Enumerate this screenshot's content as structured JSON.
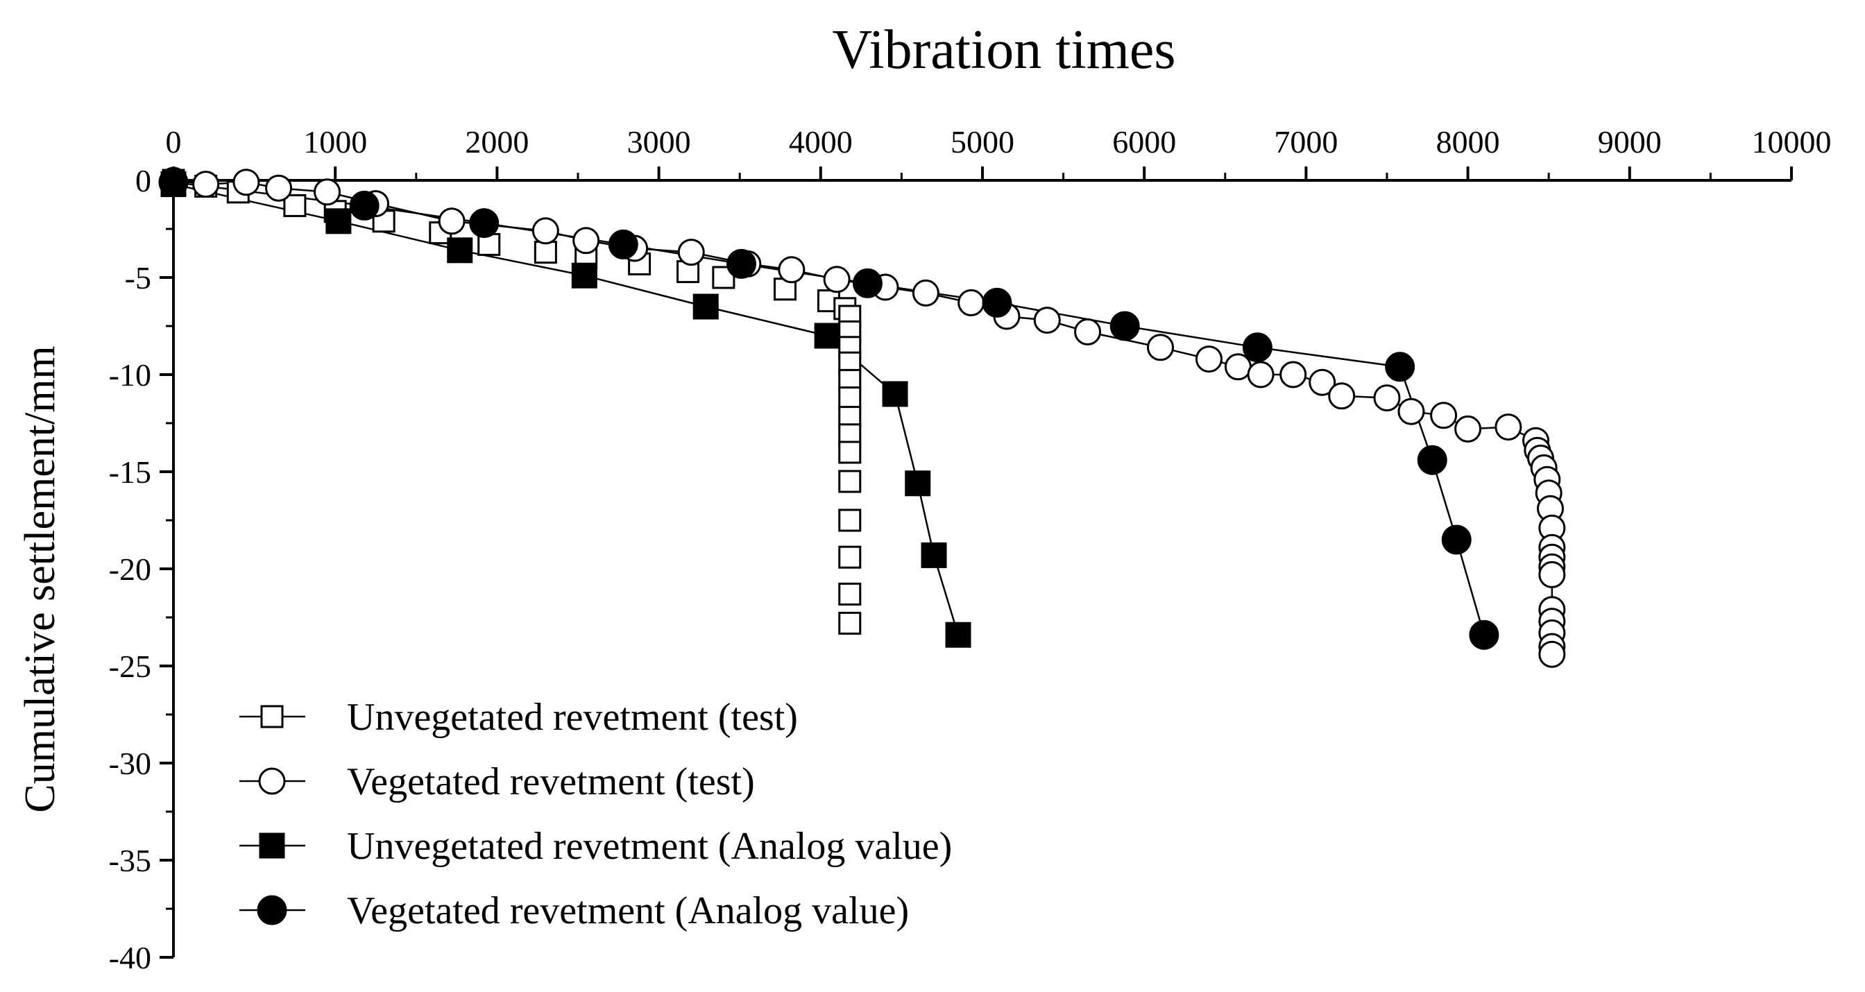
{
  "chart_data": {
    "type": "scatter",
    "title": "Vibration times",
    "xlabel": "Vibration times",
    "ylabel": "Cumulative settlement/mm",
    "xlim": [
      0,
      10000
    ],
    "ylim": [
      -40,
      0
    ],
    "x_ticks": [
      0,
      1000,
      2000,
      3000,
      4000,
      5000,
      6000,
      7000,
      8000,
      9000,
      10000
    ],
    "y_ticks": [
      0,
      -5,
      -10,
      -15,
      -20,
      -25,
      -30,
      -35,
      -40
    ],
    "x_axis_position": "top",
    "grid": false,
    "legend_position": "bottom-left",
    "series": [
      {
        "name": "Unvegetated revetment (test)",
        "marker": "square-open",
        "line": false,
        "points": [
          [
            0,
            0
          ],
          [
            200,
            -0.3
          ],
          [
            400,
            -0.6
          ],
          [
            750,
            -1.3
          ],
          [
            1000,
            -1.6
          ],
          [
            1300,
            -2.1
          ],
          [
            1650,
            -2.7
          ],
          [
            1950,
            -3.3
          ],
          [
            2300,
            -3.7
          ],
          [
            2550,
            -4.0
          ],
          [
            2880,
            -4.3
          ],
          [
            3180,
            -4.7
          ],
          [
            3400,
            -5.0
          ],
          [
            3780,
            -5.6
          ],
          [
            4050,
            -6.2
          ],
          [
            4150,
            -6.6
          ],
          [
            4180,
            -7.0
          ],
          [
            4180,
            -7.8
          ],
          [
            4180,
            -8.6
          ],
          [
            4180,
            -9.4
          ],
          [
            4180,
            -10.3
          ],
          [
            4180,
            -11.2
          ],
          [
            4180,
            -12.2
          ],
          [
            4180,
            -13.1
          ],
          [
            4180,
            -14.0
          ],
          [
            4180,
            -15.5
          ],
          [
            4180,
            -17.5
          ],
          [
            4180,
            -19.4
          ],
          [
            4180,
            -21.3
          ],
          [
            4180,
            -22.8
          ]
        ]
      },
      {
        "name": "Vegetated revetment (test)",
        "marker": "circle-open",
        "line": true,
        "points": [
          [
            0,
            0
          ],
          [
            200,
            -0.2
          ],
          [
            450,
            -0.1
          ],
          [
            650,
            -0.4
          ],
          [
            950,
            -0.6
          ],
          [
            1250,
            -1.2
          ],
          [
            1720,
            -2.1
          ],
          [
            2300,
            -2.6
          ],
          [
            2550,
            -3.1
          ],
          [
            2850,
            -3.5
          ],
          [
            3200,
            -3.7
          ],
          [
            3550,
            -4.3
          ],
          [
            3820,
            -4.6
          ],
          [
            4100,
            -5.1
          ],
          [
            4400,
            -5.5
          ],
          [
            4650,
            -5.8
          ],
          [
            4930,
            -6.3
          ],
          [
            5150,
            -7.0
          ],
          [
            5400,
            -7.2
          ],
          [
            5650,
            -7.8
          ],
          [
            6100,
            -8.6
          ],
          [
            6400,
            -9.2
          ],
          [
            6580,
            -9.6
          ],
          [
            6720,
            -10.0
          ],
          [
            6920,
            -10.0
          ],
          [
            7100,
            -10.4
          ],
          [
            7220,
            -11.1
          ],
          [
            7500,
            -11.2
          ],
          [
            7650,
            -11.9
          ],
          [
            7850,
            -12.1
          ],
          [
            8000,
            -12.8
          ],
          [
            8250,
            -12.7
          ],
          [
            8420,
            -13.4
          ],
          [
            8430,
            -13.9
          ],
          [
            8450,
            -14.3
          ],
          [
            8470,
            -14.8
          ],
          [
            8490,
            -15.4
          ],
          [
            8500,
            -16.1
          ],
          [
            8510,
            -16.9
          ],
          [
            8520,
            -17.9
          ],
          [
            8520,
            -18.9
          ],
          [
            8520,
            -19.4
          ],
          [
            8520,
            -19.9
          ],
          [
            8520,
            -20.3
          ],
          [
            8520,
            -22.1
          ],
          [
            8520,
            -22.7
          ],
          [
            8520,
            -23.3
          ],
          [
            8520,
            -24.0
          ],
          [
            8520,
            -24.4
          ]
        ]
      },
      {
        "name": "Unvegetated revetment (Analog value)",
        "marker": "square-filled",
        "line": true,
        "points": [
          [
            0,
            -0.2
          ],
          [
            1020,
            -2.1
          ],
          [
            1770,
            -3.6
          ],
          [
            2540,
            -4.9
          ],
          [
            3290,
            -6.5
          ],
          [
            4040,
            -8.0
          ],
          [
            4460,
            -11.0
          ],
          [
            4600,
            -15.6
          ],
          [
            4700,
            -19.3
          ],
          [
            4850,
            -23.4
          ]
        ]
      },
      {
        "name": "Vegetated revetment (Analog value)",
        "marker": "circle-filled",
        "line": true,
        "points": [
          [
            0,
            -0.1
          ],
          [
            1180,
            -1.3
          ],
          [
            1920,
            -2.2
          ],
          [
            2780,
            -3.3
          ],
          [
            3510,
            -4.3
          ],
          [
            4290,
            -5.3
          ],
          [
            5090,
            -6.3
          ],
          [
            5880,
            -7.5
          ],
          [
            6700,
            -8.6
          ],
          [
            7580,
            -9.6
          ],
          [
            7780,
            -14.4
          ],
          [
            7930,
            -18.5
          ],
          [
            8100,
            -23.4
          ]
        ]
      }
    ]
  }
}
